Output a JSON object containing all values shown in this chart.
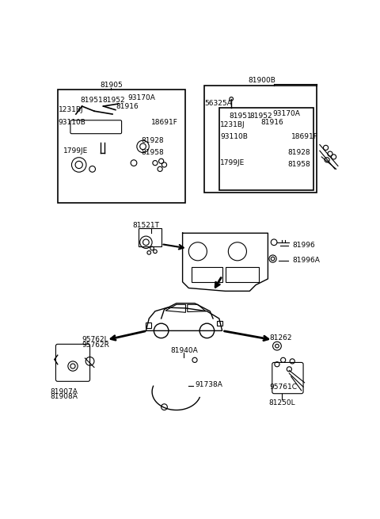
{
  "bg_color": "#ffffff",
  "line_color": "#000000",
  "text_color": "#000000",
  "fig_width": 4.8,
  "fig_height": 6.55,
  "dpi": 100,
  "parts": {
    "box1_label": "81905",
    "box2_label": "81900B",
    "label_56325A": "56325A",
    "label_81521T": "81521T",
    "label_81996": "81996",
    "label_81996A": "81996A",
    "label_95762L": "95762L",
    "label_95762R": "95762R",
    "label_81907A": "81907A",
    "label_81908A": "81908A",
    "label_81262": "81262",
    "label_81940A": "81940A",
    "label_91738A": "91738A",
    "label_95761C": "95761C",
    "label_81250L": "81250L",
    "box_labels_1": [
      "81951",
      "81952",
      "93170A",
      "1231BJ",
      "81916",
      "93110B",
      "18691F",
      "81928",
      "1799JE",
      "81958"
    ],
    "box_labels_2": [
      "81951",
      "81952",
      "93170A",
      "1231BJ",
      "81916",
      "93110B",
      "18691F",
      "81928",
      "1799JE",
      "81958"
    ]
  }
}
